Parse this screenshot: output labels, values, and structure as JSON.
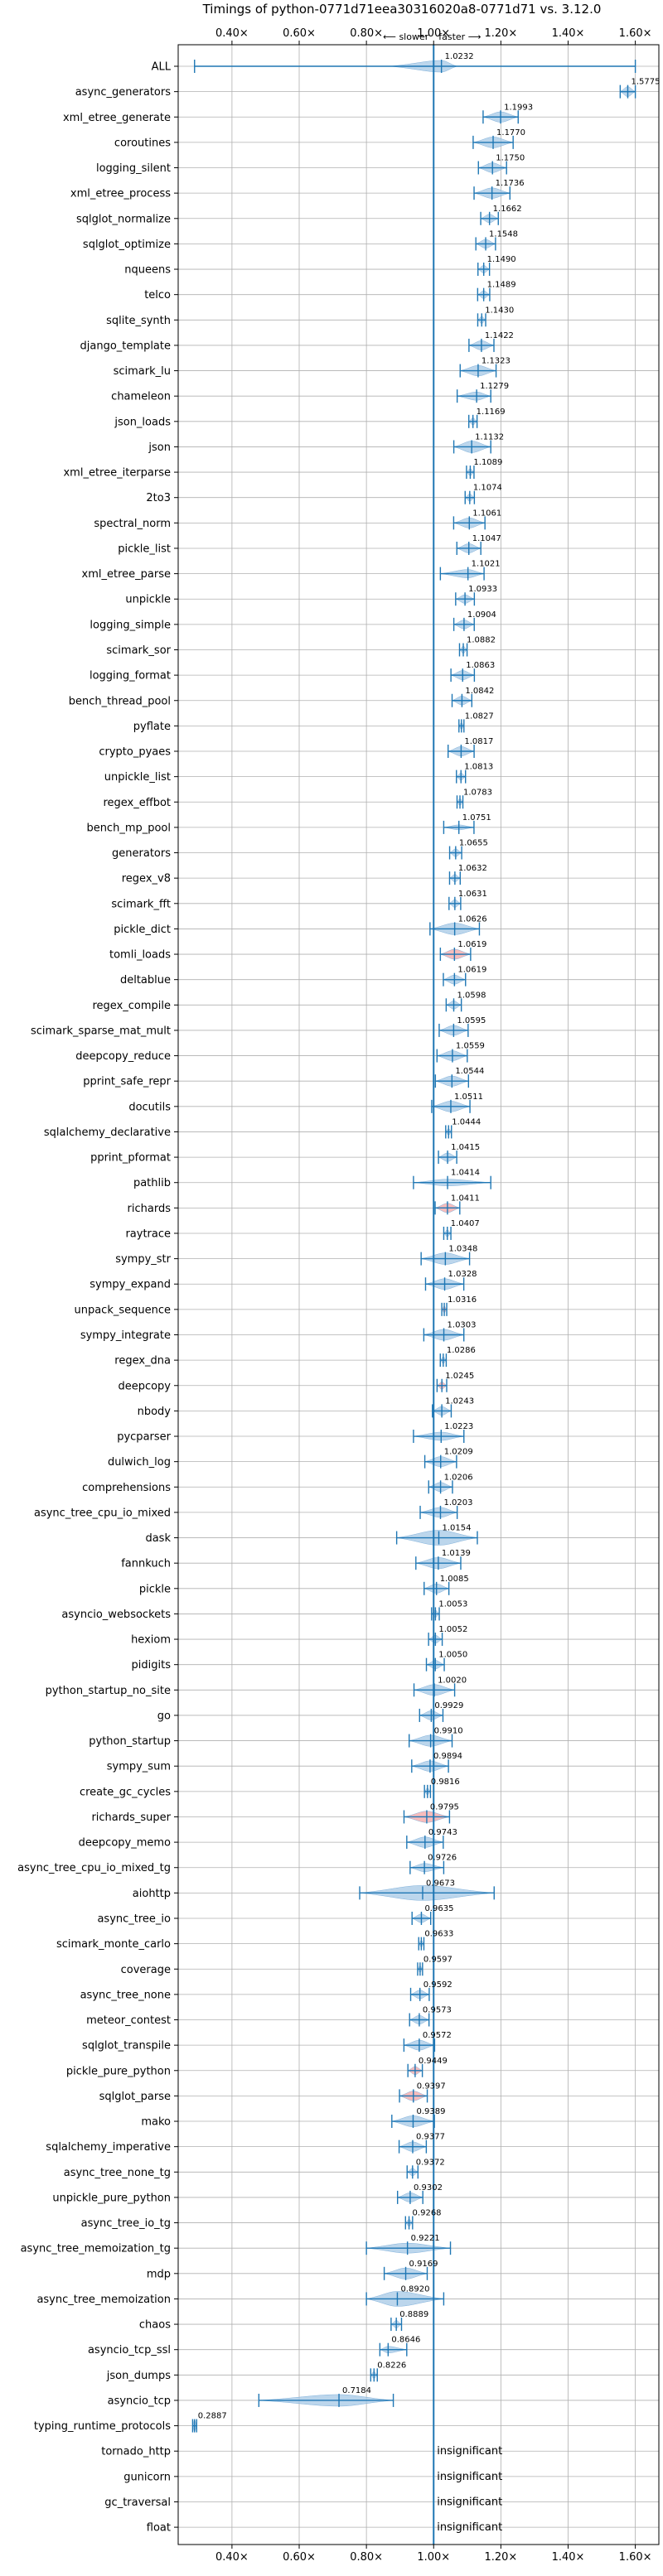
{
  "chart_data": {
    "type": "violin",
    "title": "Timings of python-0771d71eea30316020a8-0771d71 vs. 3.12.0",
    "direction_left": "⟵ slower",
    "direction_right": "faster ⟶",
    "xlim": [
      0.24,
      1.67
    ],
    "reference_x": 1.0,
    "grid": true,
    "ticks": [
      {
        "v": 0.4,
        "label": "0.40×"
      },
      {
        "v": 0.6,
        "label": "0.60×"
      },
      {
        "v": 0.8,
        "label": "0.80×"
      },
      {
        "v": 1.0,
        "label": "1.00×"
      },
      {
        "v": 1.2,
        "label": "1.20×"
      },
      {
        "v": 1.4,
        "label": "1.40×"
      },
      {
        "v": 1.6,
        "label": "1.60×"
      }
    ],
    "rows": [
      {
        "name": "ALL",
        "v": 1.0232,
        "label": "1.0232",
        "lo": 0.2887,
        "hi": 1.6
      },
      {
        "name": "async_generators",
        "v": 1.5775,
        "label": "1.5775"
      },
      {
        "name": "xml_etree_generate",
        "v": 1.1993,
        "label": "1.1993"
      },
      {
        "name": "coroutines",
        "v": 1.177,
        "label": "1.1770"
      },
      {
        "name": "logging_silent",
        "v": 1.175,
        "label": "1.1750"
      },
      {
        "name": "xml_etree_process",
        "v": 1.1736,
        "label": "1.1736"
      },
      {
        "name": "sqlglot_normalize",
        "v": 1.1662,
        "label": "1.1662"
      },
      {
        "name": "sqlglot_optimize",
        "v": 1.1548,
        "label": "1.1548"
      },
      {
        "name": "nqueens",
        "v": 1.149,
        "label": "1.1490"
      },
      {
        "name": "telco",
        "v": 1.1489,
        "label": "1.1489"
      },
      {
        "name": "sqlite_synth",
        "v": 1.143,
        "label": "1.1430"
      },
      {
        "name": "django_template",
        "v": 1.1422,
        "label": "1.1422"
      },
      {
        "name": "scimark_lu",
        "v": 1.1323,
        "label": "1.1323"
      },
      {
        "name": "chameleon",
        "v": 1.1279,
        "label": "1.1279"
      },
      {
        "name": "json_loads",
        "v": 1.1169,
        "label": "1.1169"
      },
      {
        "name": "json",
        "v": 1.1132,
        "label": "1.1132"
      },
      {
        "name": "xml_etree_iterparse",
        "v": 1.1089,
        "label": "1.1089"
      },
      {
        "name": "2to3",
        "v": 1.1074,
        "label": "1.1074"
      },
      {
        "name": "spectral_norm",
        "v": 1.1061,
        "label": "1.1061"
      },
      {
        "name": "pickle_list",
        "v": 1.1047,
        "label": "1.1047"
      },
      {
        "name": "xml_etree_parse",
        "v": 1.1021,
        "label": "1.1021"
      },
      {
        "name": "unpickle",
        "v": 1.0933,
        "label": "1.0933"
      },
      {
        "name": "logging_simple",
        "v": 1.0904,
        "label": "1.0904"
      },
      {
        "name": "scimark_sor",
        "v": 1.0882,
        "label": "1.0882"
      },
      {
        "name": "logging_format",
        "v": 1.0863,
        "label": "1.0863"
      },
      {
        "name": "bench_thread_pool",
        "v": 1.0842,
        "label": "1.0842"
      },
      {
        "name": "pyflate",
        "v": 1.0827,
        "label": "1.0827"
      },
      {
        "name": "crypto_pyaes",
        "v": 1.0817,
        "label": "1.0817"
      },
      {
        "name": "unpickle_list",
        "v": 1.0813,
        "label": "1.0813"
      },
      {
        "name": "regex_effbot",
        "v": 1.0783,
        "label": "1.0783"
      },
      {
        "name": "bench_mp_pool",
        "v": 1.0751,
        "label": "1.0751"
      },
      {
        "name": "generators",
        "v": 1.0655,
        "label": "1.0655"
      },
      {
        "name": "regex_v8",
        "v": 1.0632,
        "label": "1.0632"
      },
      {
        "name": "scimark_fft",
        "v": 1.0631,
        "label": "1.0631"
      },
      {
        "name": "pickle_dict",
        "v": 1.0626,
        "label": "1.0626"
      },
      {
        "name": "tomli_loads",
        "v": 1.0619,
        "label": "1.0619"
      },
      {
        "name": "deltablue",
        "v": 1.0619,
        "label": "1.0619"
      },
      {
        "name": "regex_compile",
        "v": 1.0598,
        "label": "1.0598"
      },
      {
        "name": "scimark_sparse_mat_mult",
        "v": 1.0595,
        "label": "1.0595"
      },
      {
        "name": "deepcopy_reduce",
        "v": 1.0559,
        "label": "1.0559"
      },
      {
        "name": "pprint_safe_repr",
        "v": 1.0544,
        "label": "1.0544"
      },
      {
        "name": "docutils",
        "v": 1.0511,
        "label": "1.0511"
      },
      {
        "name": "sqlalchemy_declarative",
        "v": 1.0444,
        "label": "1.0444"
      },
      {
        "name": "pprint_pformat",
        "v": 1.0415,
        "label": "1.0415"
      },
      {
        "name": "pathlib",
        "v": 1.0414,
        "label": "1.0414"
      },
      {
        "name": "richards",
        "v": 1.0411,
        "label": "1.0411"
      },
      {
        "name": "raytrace",
        "v": 1.0407,
        "label": "1.0407"
      },
      {
        "name": "sympy_str",
        "v": 1.0348,
        "label": "1.0348"
      },
      {
        "name": "sympy_expand",
        "v": 1.0328,
        "label": "1.0328"
      },
      {
        "name": "unpack_sequence",
        "v": 1.0316,
        "label": "1.0316"
      },
      {
        "name": "sympy_integrate",
        "v": 1.0303,
        "label": "1.0303"
      },
      {
        "name": "regex_dna",
        "v": 1.0286,
        "label": "1.0286"
      },
      {
        "name": "deepcopy",
        "v": 1.0245,
        "label": "1.0245"
      },
      {
        "name": "nbody",
        "v": 1.0243,
        "label": "1.0243"
      },
      {
        "name": "pycparser",
        "v": 1.0223,
        "label": "1.0223"
      },
      {
        "name": "dulwich_log",
        "v": 1.0209,
        "label": "1.0209"
      },
      {
        "name": "comprehensions",
        "v": 1.0206,
        "label": "1.0206"
      },
      {
        "name": "async_tree_cpu_io_mixed",
        "v": 1.0203,
        "label": "1.0203"
      },
      {
        "name": "dask",
        "v": 1.0154,
        "label": "1.0154"
      },
      {
        "name": "fannkuch",
        "v": 1.0139,
        "label": "1.0139"
      },
      {
        "name": "pickle",
        "v": 1.0085,
        "label": "1.0085"
      },
      {
        "name": "asyncio_websockets",
        "v": 1.0053,
        "label": "1.0053"
      },
      {
        "name": "hexiom",
        "v": 1.0052,
        "label": "1.0052"
      },
      {
        "name": "pidigits",
        "v": 1.005,
        "label": "1.0050"
      },
      {
        "name": "python_startup_no_site",
        "v": 1.002,
        "label": "1.0020"
      },
      {
        "name": "go",
        "v": 0.9929,
        "label": "0.9929"
      },
      {
        "name": "python_startup",
        "v": 0.991,
        "label": "0.9910"
      },
      {
        "name": "sympy_sum",
        "v": 0.9894,
        "label": "0.9894"
      },
      {
        "name": "create_gc_cycles",
        "v": 0.9816,
        "label": "0.9816"
      },
      {
        "name": "richards_super",
        "v": 0.9795,
        "label": "0.9795"
      },
      {
        "name": "deepcopy_memo",
        "v": 0.9743,
        "label": "0.9743"
      },
      {
        "name": "async_tree_cpu_io_mixed_tg",
        "v": 0.9726,
        "label": "0.9726"
      },
      {
        "name": "aiohttp",
        "v": 0.9673,
        "label": "0.9673"
      },
      {
        "name": "async_tree_io",
        "v": 0.9635,
        "label": "0.9635"
      },
      {
        "name": "scimark_monte_carlo",
        "v": 0.9633,
        "label": "0.9633"
      },
      {
        "name": "coverage",
        "v": 0.9597,
        "label": "0.9597"
      },
      {
        "name": "async_tree_none",
        "v": 0.9592,
        "label": "0.9592"
      },
      {
        "name": "meteor_contest",
        "v": 0.9573,
        "label": "0.9573"
      },
      {
        "name": "sqlglot_transpile",
        "v": 0.9572,
        "label": "0.9572"
      },
      {
        "name": "pickle_pure_python",
        "v": 0.9449,
        "label": "0.9449"
      },
      {
        "name": "sqlglot_parse",
        "v": 0.9397,
        "label": "0.9397"
      },
      {
        "name": "mako",
        "v": 0.9389,
        "label": "0.9389"
      },
      {
        "name": "sqlalchemy_imperative",
        "v": 0.9377,
        "label": "0.9377"
      },
      {
        "name": "async_tree_none_tg",
        "v": 0.9372,
        "label": "0.9372"
      },
      {
        "name": "unpickle_pure_python",
        "v": 0.9302,
        "label": "0.9302"
      },
      {
        "name": "async_tree_io_tg",
        "v": 0.9268,
        "label": "0.9268"
      },
      {
        "name": "async_tree_memoization_tg",
        "v": 0.9221,
        "label": "0.9221"
      },
      {
        "name": "mdp",
        "v": 0.9169,
        "label": "0.9169"
      },
      {
        "name": "async_tree_memoization",
        "v": 0.892,
        "label": "0.8920"
      },
      {
        "name": "chaos",
        "v": 0.8889,
        "label": "0.8889"
      },
      {
        "name": "asyncio_tcp_ssl",
        "v": 0.8646,
        "label": "0.8646"
      },
      {
        "name": "json_dumps",
        "v": 0.8226,
        "label": "0.8226"
      },
      {
        "name": "asyncio_tcp",
        "v": 0.7184,
        "label": "0.7184"
      },
      {
        "name": "typing_runtime_protocols",
        "v": 0.2887,
        "label": "0.2887"
      },
      {
        "name": "tornado_http",
        "v": null,
        "label": "insignificant"
      },
      {
        "name": "gunicorn",
        "v": null,
        "label": "insignificant"
      },
      {
        "name": "gc_traversal",
        "v": null,
        "label": "insignificant"
      },
      {
        "name": "float",
        "v": null,
        "label": "insignificant"
      }
    ],
    "colors": {
      "line": "#1f77b4",
      "violin": "#a6c8e6",
      "violin_edge": "#7fb0da",
      "highlight": "#f4a6a6",
      "grid": "#b0b0b0",
      "axis": "#000000",
      "text": "#000000"
    }
  }
}
